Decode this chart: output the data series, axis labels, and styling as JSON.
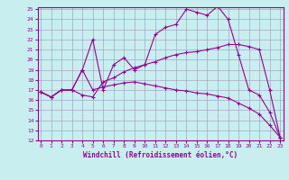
{
  "xlabel": "Windchill (Refroidissement éolien,°C)",
  "bg_color": "#c8eef0",
  "line_color": "#990099",
  "grid_color": "#9999bb",
  "line1_x": [
    0,
    1,
    2,
    3,
    4,
    5,
    6,
    7,
    8,
    9,
    10,
    11,
    12,
    13,
    14,
    15,
    16,
    17,
    18,
    19,
    20,
    21,
    22,
    23
  ],
  "line1_y": [
    16.8,
    16.3,
    17.0,
    17.0,
    19.0,
    22.0,
    17.0,
    19.5,
    20.2,
    19.0,
    19.5,
    22.5,
    23.2,
    23.5,
    25.0,
    24.7,
    24.4,
    25.3,
    24.0,
    20.5,
    17.0,
    16.5,
    14.8,
    12.3
  ],
  "line2_x": [
    0,
    1,
    2,
    3,
    4,
    5,
    6,
    7,
    8,
    9,
    10,
    11,
    12,
    13,
    14,
    15,
    16,
    17,
    18,
    19,
    20,
    21,
    22,
    23
  ],
  "line2_y": [
    16.8,
    16.3,
    17.0,
    17.0,
    16.5,
    16.3,
    17.8,
    18.2,
    18.8,
    19.2,
    19.5,
    19.8,
    20.2,
    20.5,
    20.7,
    20.8,
    21.0,
    21.2,
    21.5,
    21.5,
    21.3,
    21.0,
    17.0,
    12.3
  ],
  "line3_x": [
    0,
    1,
    2,
    3,
    4,
    5,
    6,
    7,
    8,
    9,
    10,
    11,
    12,
    13,
    14,
    15,
    16,
    17,
    18,
    19,
    20,
    21,
    22,
    23
  ],
  "line3_y": [
    16.8,
    16.3,
    17.0,
    17.0,
    19.0,
    17.0,
    17.3,
    17.5,
    17.7,
    17.8,
    17.6,
    17.4,
    17.2,
    17.0,
    16.9,
    16.7,
    16.6,
    16.4,
    16.2,
    15.7,
    15.2,
    14.6,
    13.5,
    12.3
  ],
  "xmin": 0,
  "xmax": 23,
  "ymin": 12,
  "ymax": 25,
  "xticks": [
    0,
    1,
    2,
    3,
    4,
    5,
    6,
    7,
    8,
    9,
    10,
    11,
    12,
    13,
    14,
    15,
    16,
    17,
    18,
    19,
    20,
    21,
    22,
    23
  ],
  "yticks": [
    12,
    13,
    14,
    15,
    16,
    17,
    18,
    19,
    20,
    21,
    22,
    23,
    24,
    25
  ]
}
